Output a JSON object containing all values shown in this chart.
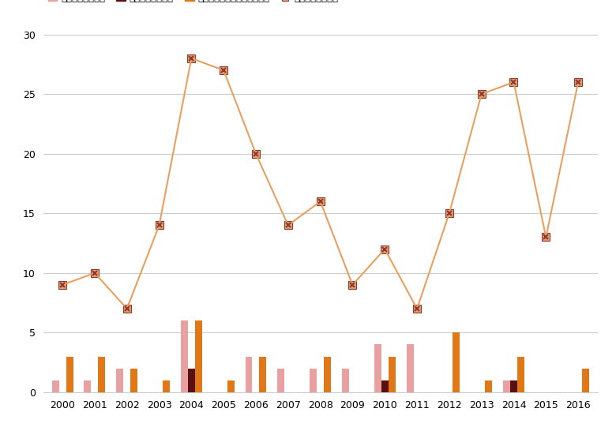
{
  "years": [
    2000,
    2001,
    2002,
    2003,
    2004,
    2005,
    2006,
    2007,
    2008,
    2009,
    2010,
    2011,
    2012,
    2013,
    2014,
    2015,
    2016
  ],
  "injured": [
    1,
    1,
    2,
    0,
    6,
    0,
    3,
    2,
    2,
    2,
    4,
    4,
    0,
    0,
    1,
    0,
    0
  ],
  "killed": [
    0,
    0,
    0,
    0,
    2,
    0,
    0,
    0,
    0,
    0,
    1,
    0,
    0,
    0,
    1,
    0,
    0
  ],
  "tigers_killed": [
    3,
    3,
    2,
    1,
    6,
    1,
    3,
    0,
    3,
    0,
    3,
    0,
    5,
    1,
    3,
    0,
    2
  ],
  "sightings": [
    9,
    10,
    7,
    14,
    28,
    27,
    20,
    14,
    16,
    9,
    12,
    7,
    15,
    25,
    26,
    13,
    26
  ],
  "color_injured": "#e8a0a0",
  "color_killed": "#5a1010",
  "color_tigers_killed": "#e07818",
  "color_sightings": "#e8a060",
  "marker_edge_color": "#8b3a3a",
  "ylim": [
    0,
    30
  ],
  "yticks": [
    0,
    5,
    10,
    15,
    20,
    25,
    30
  ],
  "bar_width": 0.22,
  "figsize": [
    7.8,
    5.46
  ],
  "dpi": 100,
  "background_color": "#ffffff",
  "grid_color": "#cccccc",
  "tick_fontsize": 9,
  "legend_fontsize": 8.5
}
